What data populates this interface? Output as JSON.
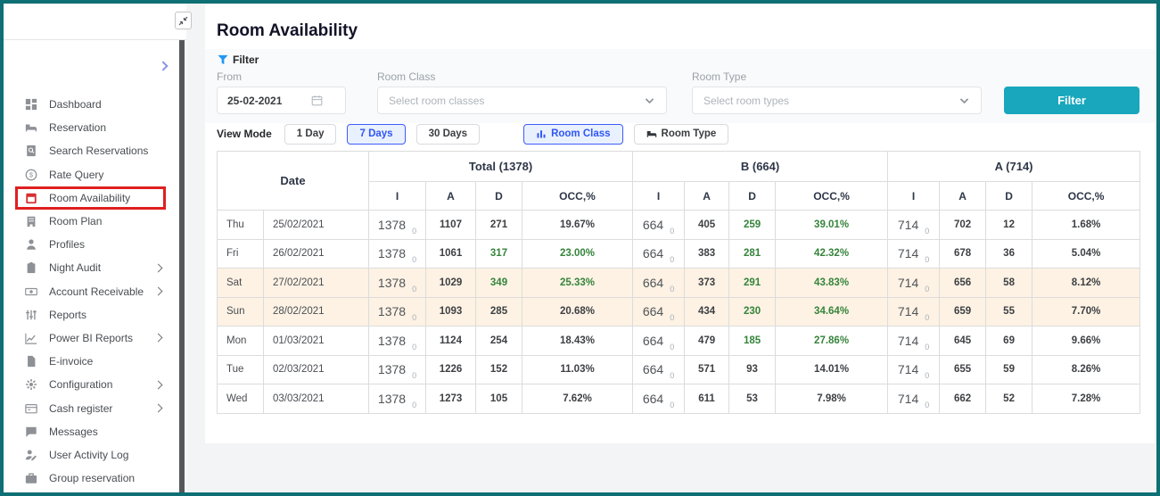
{
  "page": {
    "title": "Room Availability"
  },
  "sidebar": {
    "items": [
      {
        "label": "Dashboard",
        "icon": "dashboard",
        "active": false,
        "expandable": false
      },
      {
        "label": "Reservation",
        "icon": "bed",
        "active": false,
        "expandable": false
      },
      {
        "label": "Search Reservations",
        "icon": "search-document",
        "active": false,
        "expandable": false
      },
      {
        "label": "Rate Query",
        "icon": "dollar-circle",
        "active": false,
        "expandable": false
      },
      {
        "label": "Room Availability",
        "icon": "calendar",
        "active": true,
        "expandable": false
      },
      {
        "label": "Room Plan",
        "icon": "building",
        "active": false,
        "expandable": false
      },
      {
        "label": "Profiles",
        "icon": "person",
        "active": false,
        "expandable": false
      },
      {
        "label": "Night Audit",
        "icon": "clipboard",
        "active": false,
        "expandable": true
      },
      {
        "label": "Account Receivable",
        "icon": "banknote",
        "active": false,
        "expandable": true
      },
      {
        "label": "Reports",
        "icon": "report-sliders",
        "active": false,
        "expandable": false
      },
      {
        "label": "Power BI Reports",
        "icon": "line-chart",
        "active": false,
        "expandable": true
      },
      {
        "label": "E-invoice",
        "icon": "invoice",
        "active": false,
        "expandable": false
      },
      {
        "label": "Configuration",
        "icon": "gear",
        "active": false,
        "expandable": true
      },
      {
        "label": "Cash register",
        "icon": "cash-register",
        "active": false,
        "expandable": true
      },
      {
        "label": "Messages",
        "icon": "message",
        "active": false,
        "expandable": false
      },
      {
        "label": "User Activity Log",
        "icon": "user-activity",
        "active": false,
        "expandable": false
      },
      {
        "label": "Group reservation",
        "icon": "briefcase",
        "active": false,
        "expandable": false
      }
    ]
  },
  "filter": {
    "section_label": "Filter",
    "fields": {
      "from": {
        "label": "From",
        "value": "25-02-2021"
      },
      "room_class": {
        "label": "Room Class",
        "placeholder": "Select room classes"
      },
      "room_type": {
        "label": "Room Type",
        "placeholder": "Select room types"
      }
    },
    "submit_label": "Filter"
  },
  "view_mode": {
    "label": "View Mode",
    "day_options": [
      {
        "label": "1 Day",
        "selected": false
      },
      {
        "label": "7 Days",
        "selected": true
      },
      {
        "label": "30 Days",
        "selected": false
      }
    ],
    "grouping_options": [
      {
        "label": "Room Class",
        "icon": "bar-chart",
        "selected": true
      },
      {
        "label": "Room Type",
        "icon": "bed",
        "selected": false
      }
    ]
  },
  "table": {
    "date_column_header": "Date",
    "groups": [
      "Total (1378)",
      "B (664)",
      "A (714)"
    ],
    "sub_headers": [
      "I",
      "A",
      "D",
      "OCC,%"
    ],
    "rows": [
      {
        "day": "Thu",
        "date": "25/02/2021",
        "weekend": false,
        "groups": [
          {
            "I": "1378",
            "I_sub": "0",
            "A": "1107",
            "D": "271",
            "OCC": "19.67%",
            "D_green": false,
            "OCC_green": false
          },
          {
            "I": "664",
            "I_sub": "0",
            "A": "405",
            "D": "259",
            "OCC": "39.01%",
            "D_green": true,
            "OCC_green": true
          },
          {
            "I": "714",
            "I_sub": "0",
            "A": "702",
            "D": "12",
            "OCC": "1.68%",
            "D_green": false,
            "OCC_green": false
          }
        ]
      },
      {
        "day": "Fri",
        "date": "26/02/2021",
        "weekend": false,
        "groups": [
          {
            "I": "1378",
            "I_sub": "0",
            "A": "1061",
            "D": "317",
            "OCC": "23.00%",
            "D_green": true,
            "OCC_green": true
          },
          {
            "I": "664",
            "I_sub": "0",
            "A": "383",
            "D": "281",
            "OCC": "42.32%",
            "D_green": true,
            "OCC_green": true
          },
          {
            "I": "714",
            "I_sub": "0",
            "A": "678",
            "D": "36",
            "OCC": "5.04%",
            "D_green": false,
            "OCC_green": false
          }
        ]
      },
      {
        "day": "Sat",
        "date": "27/02/2021",
        "weekend": true,
        "groups": [
          {
            "I": "1378",
            "I_sub": "0",
            "A": "1029",
            "D": "349",
            "OCC": "25.33%",
            "D_green": true,
            "OCC_green": true
          },
          {
            "I": "664",
            "I_sub": "0",
            "A": "373",
            "D": "291",
            "OCC": "43.83%",
            "D_green": true,
            "OCC_green": true
          },
          {
            "I": "714",
            "I_sub": "0",
            "A": "656",
            "D": "58",
            "OCC": "8.12%",
            "D_green": false,
            "OCC_green": false
          }
        ]
      },
      {
        "day": "Sun",
        "date": "28/02/2021",
        "weekend": true,
        "groups": [
          {
            "I": "1378",
            "I_sub": "0",
            "A": "1093",
            "D": "285",
            "OCC": "20.68%",
            "D_green": false,
            "OCC_green": false
          },
          {
            "I": "664",
            "I_sub": "0",
            "A": "434",
            "D": "230",
            "OCC": "34.64%",
            "D_green": true,
            "OCC_green": true
          },
          {
            "I": "714",
            "I_sub": "0",
            "A": "659",
            "D": "55",
            "OCC": "7.70%",
            "D_green": false,
            "OCC_green": false
          }
        ]
      },
      {
        "day": "Mon",
        "date": "01/03/2021",
        "weekend": false,
        "groups": [
          {
            "I": "1378",
            "I_sub": "0",
            "A": "1124",
            "D": "254",
            "OCC": "18.43%",
            "D_green": false,
            "OCC_green": false
          },
          {
            "I": "664",
            "I_sub": "0",
            "A": "479",
            "D": "185",
            "OCC": "27.86%",
            "D_green": true,
            "OCC_green": true
          },
          {
            "I": "714",
            "I_sub": "0",
            "A": "645",
            "D": "69",
            "OCC": "9.66%",
            "D_green": false,
            "OCC_green": false
          }
        ]
      },
      {
        "day": "Tue",
        "date": "02/03/2021",
        "weekend": false,
        "groups": [
          {
            "I": "1378",
            "I_sub": "0",
            "A": "1226",
            "D": "152",
            "OCC": "11.03%",
            "D_green": false,
            "OCC_green": false
          },
          {
            "I": "664",
            "I_sub": "0",
            "A": "571",
            "D": "93",
            "OCC": "14.01%",
            "D_green": false,
            "OCC_green": false
          },
          {
            "I": "714",
            "I_sub": "0",
            "A": "655",
            "D": "59",
            "OCC": "8.26%",
            "D_green": false,
            "OCC_green": false
          }
        ]
      },
      {
        "day": "Wed",
        "date": "03/03/2021",
        "weekend": false,
        "groups": [
          {
            "I": "1378",
            "I_sub": "0",
            "A": "1273",
            "D": "105",
            "OCC": "7.62%",
            "D_green": false,
            "OCC_green": false
          },
          {
            "I": "664",
            "I_sub": "0",
            "A": "611",
            "D": "53",
            "OCC": "7.98%",
            "D_green": false,
            "OCC_green": false
          },
          {
            "I": "714",
            "I_sub": "0",
            "A": "662",
            "D": "52",
            "OCC": "7.28%",
            "D_green": false,
            "OCC_green": false
          }
        ]
      }
    ]
  },
  "colors": {
    "frame_teal": "#0e6f74",
    "filter_button_teal": "#18a7bd",
    "selected_blue": "#3d5afe",
    "highlight_red": "#e01f1f",
    "weekend_row": "#fdf2e4",
    "positive_green": "#35843b"
  }
}
